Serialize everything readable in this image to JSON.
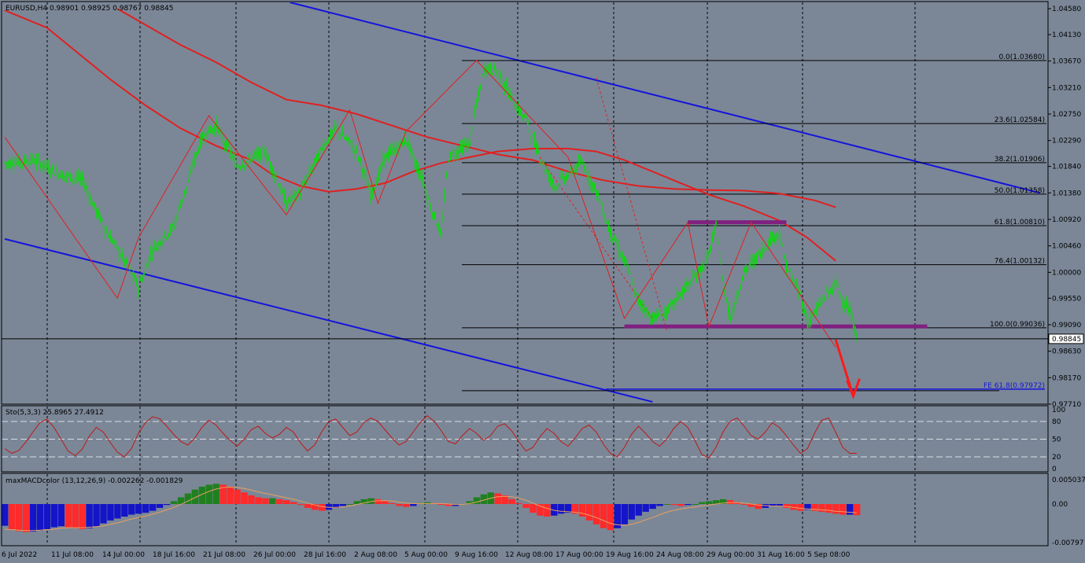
{
  "colors": {
    "background": "#7b8797",
    "grid": "#000000",
    "candle_up": "#00e000",
    "candle_down": "#00e000",
    "moving_average": "#e02020",
    "zigzag": "#e02020",
    "trendline": "#1414dc",
    "fib": "#000000",
    "fe_line": "#1414dc",
    "zone": "#802080",
    "arrow": "#ff1a1a",
    "stoch": "#c01818",
    "macd_up_strong": "#208020",
    "macd_up_weak": "#1414c8",
    "macd_down": "#ff2a2a",
    "macd_signal": "#e8a060",
    "text": "#000000",
    "price_tag_bg": "#ffffff"
  },
  "chart_data": [
    {
      "type": "candlestick",
      "title": "EURUSD,H4  0.98901 0.98925 0.98767 0.98845",
      "symbol": "EURUSD",
      "timeframe": "H4",
      "ohlc_header": {
        "open": 0.98901,
        "high": 0.98925,
        "low": 0.98767,
        "close": 0.98845
      },
      "current_price_label": "0.98845",
      "ylim": [
        0.9771,
        1.0469
      ],
      "y_ticks": [
        "1.04580",
        "1.04130",
        "1.03670",
        "1.03210",
        "1.02750",
        "1.02290",
        "1.01840",
        "1.01380",
        "1.00920",
        "1.00460",
        "1.00000",
        "0.99550",
        "0.99090",
        "0.98630",
        "0.98170",
        "0.97710"
      ],
      "x_labels": [
        "6 Jul 2022",
        "11 Jul 08:00",
        "14 Jul 00:00",
        "18 Jul 16:00",
        "21 Jul 08:00",
        "26 Jul 00:00",
        "28 Jul 16:00",
        "2 Aug 08:00",
        "5 Aug 00:00",
        "9 Aug 16:00",
        "12 Aug 08:00",
        "17 Aug 00:00",
        "19 Aug 16:00",
        "24 Aug 08:00",
        "29 Aug 00:00",
        "31 Aug 16:00",
        "5 Sep 08:00"
      ],
      "price_path": [
        [
          0,
          1.019
        ],
        [
          4,
          1.0195
        ],
        [
          8,
          1.017
        ],
        [
          11,
          1.016
        ],
        [
          14,
          1.008
        ],
        [
          17,
          1.002
        ],
        [
          19,
          0.9975
        ],
        [
          21,
          1.004
        ],
        [
          24,
          1.008
        ],
        [
          28,
          1.0235
        ],
        [
          30,
          1.0255
        ],
        [
          33,
          1.0185
        ],
        [
          37,
          1.021
        ],
        [
          40,
          1.012
        ],
        [
          42,
          1.014
        ],
        [
          45,
          1.0215
        ],
        [
          47,
          1.025
        ],
        [
          50,
          1.021
        ],
        [
          52,
          1.0135
        ],
        [
          54,
          1.02
        ],
        [
          57,
          1.023
        ],
        [
          59,
          1.017
        ],
        [
          62,
          1.006
        ],
        [
          63,
          1.02
        ],
        [
          66,
          1.0225
        ],
        [
          68,
          1.0355
        ],
        [
          70,
          1.035
        ],
        [
          72,
          1.03
        ],
        [
          74,
          1.0265
        ],
        [
          76,
          1.02
        ],
        [
          78,
          1.015
        ],
        [
          80,
          1.017
        ],
        [
          82,
          1.019
        ],
        [
          84,
          1.014
        ],
        [
          86,
          1.007
        ],
        [
          88,
          1.002
        ],
        [
          90,
          0.995
        ],
        [
          92,
          0.992
        ],
        [
          94,
          0.993
        ],
        [
          96,
          0.9965
        ],
        [
          98,
          0.999
        ],
        [
          100,
          1.003
        ],
        [
          101,
          1.008
        ],
        [
          102,
          0.999
        ],
        [
          103,
          0.992
        ],
        [
          105,
          1.0
        ],
        [
          107,
          1.003
        ],
        [
          109,
          1.006
        ],
        [
          110,
          1.007
        ],
        [
          111,
          1.001
        ],
        [
          113,
          0.996
        ],
        [
          114,
          0.991
        ],
        [
          116,
          0.995
        ],
        [
          118,
          0.998
        ],
        [
          120,
          0.993
        ],
        [
          121,
          0.989
        ]
      ],
      "series": [
        {
          "name": "",
          "kind": "moving_average",
          "values": [
            [
              0,
              1.0455
            ],
            [
              6,
              1.0425
            ],
            [
              10,
              1.0385
            ],
            [
              15,
              1.0335
            ],
            [
              20,
              1.029
            ],
            [
              25,
              1.025
            ],
            [
              30,
              1.022
            ],
            [
              35,
              1.0195
            ],
            [
              38,
              1.017
            ],
            [
              42,
              1.015
            ],
            [
              46,
              1.014
            ],
            [
              50,
              1.0145
            ],
            [
              54,
              1.0155
            ],
            [
              58,
              1.0175
            ],
            [
              62,
              1.019
            ],
            [
              66,
              1.02
            ],
            [
              70,
              1.021
            ],
            [
              75,
              1.0215
            ],
            [
              80,
              1.0215
            ],
            [
              84,
              1.021
            ],
            [
              88,
              1.0195
            ],
            [
              92,
              1.0175
            ],
            [
              96,
              1.0155
            ],
            [
              100,
              1.0135
            ],
            [
              105,
              1.0115
            ],
            [
              110,
              1.009
            ],
            [
              114,
              1.006
            ],
            [
              118,
              1.002
            ]
          ]
        },
        {
          "name": "",
          "kind": "moving_average",
          "values": [
            [
              16,
              1.0458
            ],
            [
              20,
              1.043
            ],
            [
              25,
              1.0395
            ],
            [
              30,
              1.0365
            ],
            [
              35,
              1.033
            ],
            [
              40,
              1.03
            ],
            [
              45,
              1.029
            ],
            [
              50,
              1.0275
            ],
            [
              55,
              1.0255
            ],
            [
              60,
              1.0235
            ],
            [
              65,
              1.022
            ],
            [
              70,
              1.0205
            ],
            [
              75,
              1.0195
            ],
            [
              80,
              1.0175
            ],
            [
              85,
              1.016
            ],
            [
              90,
              1.015
            ],
            [
              95,
              1.0145
            ],
            [
              100,
              1.0143
            ],
            [
              105,
              1.0142
            ],
            [
              110,
              1.0137
            ],
            [
              115,
              1.0125
            ],
            [
              118,
              1.0113
            ]
          ]
        }
      ],
      "fibonacci": [
        {
          "label": "0.0(1.03680)",
          "level": 1.0368
        },
        {
          "label": "23.6(1.02584)",
          "level": 1.02584
        },
        {
          "label": "38.2(1.01906)",
          "level": 1.01906
        },
        {
          "label": "50.0(1.01358)",
          "level": 1.01358
        },
        {
          "label": "61.8(1.00810)",
          "level": 1.0081
        },
        {
          "label": "76.4(1.00132)",
          "level": 1.00132
        },
        {
          "label": "100.0(0.99036)",
          "level": 0.99036
        }
      ],
      "fe_level": {
        "label": "FE 61.8(0.97972)",
        "level": 0.97972
      },
      "trendlines": [
        {
          "from": [
            40.5,
            1.0469
          ],
          "to": [
            147,
            1.0138
          ]
        },
        {
          "from": [
            0,
            1.0058
          ],
          "to": [
            92,
            0.9775
          ]
        }
      ],
      "zones": [
        {
          "from_x": 88,
          "to_x": 131,
          "level": 0.9906
        },
        {
          "from_x": 97,
          "to_x": 111,
          "level": 1.0087
        }
      ],
      "forecast_arrow": {
        "from": [
          118,
          0.9883
        ],
        "to": [
          120.5,
          0.9785
        ]
      }
    },
    {
      "type": "line",
      "title": "Sto(5,3,3) 25.8965 27.4912",
      "ylim": [
        0,
        100
      ],
      "y_ticks": [
        "100",
        "80",
        "50",
        "20",
        "0"
      ],
      "levels": [
        80,
        50,
        20
      ],
      "series": [
        {
          "name": "",
          "values": [
            34,
            26,
            31,
            45,
            62,
            78,
            84,
            70,
            50,
            30,
            22,
            33,
            55,
            70,
            62,
            44,
            28,
            20,
            34,
            60,
            78,
            88,
            85,
            72,
            58,
            46,
            40,
            52,
            70,
            82,
            74,
            60,
            48,
            38,
            50,
            66,
            72,
            60,
            52,
            58,
            70,
            62,
            44,
            30,
            40,
            62,
            80,
            84,
            70,
            56,
            62,
            78,
            86,
            80,
            66,
            52,
            40,
            46,
            62,
            78,
            90,
            80,
            64,
            46,
            42,
            56,
            68,
            60,
            48,
            56,
            72,
            76,
            64,
            46,
            30,
            36,
            54,
            68,
            60,
            46,
            38,
            52,
            68,
            74,
            62,
            42,
            26,
            20,
            36,
            58,
            72,
            60,
            46,
            38,
            50,
            68,
            80,
            70,
            48,
            24,
            18,
            36,
            62,
            80,
            86,
            72,
            56,
            50,
            62,
            78,
            70,
            56,
            40,
            26,
            34,
            60,
            82,
            86,
            62,
            36,
            26,
            26
          ]
        }
      ]
    },
    {
      "type": "bar",
      "title": "maxMACDcolor (13,12,26,9) -0.002262 -0.001829",
      "ylim": [
        -0.00797,
        0.00537
      ],
      "y_ticks": [
        "0.005037",
        "0.00",
        "-0.00797"
      ],
      "histogram": [
        -0.0045,
        -0.0052,
        -0.0056,
        -0.0058,
        -0.0057,
        -0.0055,
        -0.0052,
        -0.0048,
        -0.0046,
        -0.0048,
        -0.005,
        -0.0052,
        -0.005,
        -0.0046,
        -0.004,
        -0.0034,
        -0.003,
        -0.0026,
        -0.0022,
        -0.002,
        -0.0018,
        -0.0014,
        -0.0008,
        -0.0002,
        0.0006,
        0.0014,
        0.0022,
        0.003,
        0.0036,
        0.004,
        0.0042,
        0.004,
        0.0036,
        0.003,
        0.0024,
        0.0018,
        0.0014,
        0.0012,
        0.0012,
        0.001,
        0.0008,
        0.0004,
        -0.0002,
        -0.0008,
        -0.0012,
        -0.0014,
        -0.0012,
        -0.0008,
        -0.0004,
        0.0,
        0.0006,
        0.001,
        0.0012,
        0.001,
        0.0006,
        0.0002,
        -0.0004,
        -0.0006,
        -0.0004,
        0.0002,
        0.0004,
        0.0002,
        0.0,
        -0.0004,
        -0.0004,
        0.0,
        0.0006,
        0.0014,
        0.002,
        0.0024,
        0.0022,
        0.0018,
        0.001,
        0.0002,
        -0.0008,
        -0.0018,
        -0.0024,
        -0.0026,
        -0.0024,
        -0.002,
        -0.0018,
        -0.002,
        -0.0026,
        -0.0034,
        -0.0042,
        -0.005,
        -0.0054,
        -0.005,
        -0.0042,
        -0.0032,
        -0.0024,
        -0.0016,
        -0.001,
        -0.0004,
        0.0,
        -0.0002,
        -0.0004,
        -0.0002,
        0.0,
        0.0004,
        0.0006,
        0.0008,
        0.001,
        0.0008,
        0.0004,
        0.0,
        -0.0006,
        -0.001,
        -0.0008,
        -0.0004,
        -0.0004,
        -0.0008,
        -0.0012,
        -0.0014,
        -0.0012,
        -0.0014,
        -0.0016,
        -0.0018,
        -0.002,
        -0.0022,
        -0.0022,
        -0.0023
      ],
      "signal": [
        -0.0052,
        -0.0053,
        -0.0054,
        -0.0055,
        -0.0055,
        -0.0054,
        -0.0053,
        -0.0052,
        -0.005,
        -0.0049,
        -0.0049,
        -0.0049,
        -0.0048,
        -0.0047,
        -0.0045,
        -0.0042,
        -0.0039,
        -0.0035,
        -0.0031,
        -0.0028,
        -0.0025,
        -0.0021,
        -0.0017,
        -0.0012,
        -0.0007,
        -0.0001,
        0.0006,
        0.0013,
        0.002,
        0.0026,
        0.0031,
        0.0034,
        0.0035,
        0.0034,
        0.0032,
        0.0029,
        0.0025,
        0.0022,
        0.0019,
        0.0016,
        0.0013,
        0.001,
        0.0006,
        0.0002,
        -0.0002,
        -0.0005,
        -0.0007,
        -0.0007,
        -0.0006,
        -0.0004,
        -0.0001,
        0.0002,
        0.0005,
        0.0007,
        0.0007,
        0.0006,
        0.0004,
        0.0002,
        0.0001,
        0.0001,
        0.0001,
        0.0001,
        0.0001,
        0.0,
        -0.0001,
        -0.0001,
        0.0001,
        0.0004,
        0.0008,
        0.0012,
        0.0015,
        0.0016,
        0.0015,
        0.0012,
        0.0008,
        0.0002,
        -0.0004,
        -0.0009,
        -0.0013,
        -0.0015,
        -0.0016,
        -0.0017,
        -0.0019,
        -0.0023,
        -0.0028,
        -0.0034,
        -0.004,
        -0.0043,
        -0.0044,
        -0.0042,
        -0.0038,
        -0.0033,
        -0.0028,
        -0.0022,
        -0.0017,
        -0.0013,
        -0.001,
        -0.0008,
        -0.0006,
        -0.0004,
        -0.0002,
        0.0,
        0.0002,
        0.0003,
        0.0003,
        0.0002,
        0.0,
        -0.0002,
        -0.0003,
        -0.0004,
        -0.0004,
        -0.0005,
        -0.0007,
        -0.0009,
        -0.001,
        -0.0011,
        -0.0012,
        -0.0013,
        -0.0015,
        -0.0016,
        -0.0017,
        -0.0018
      ]
    }
  ]
}
